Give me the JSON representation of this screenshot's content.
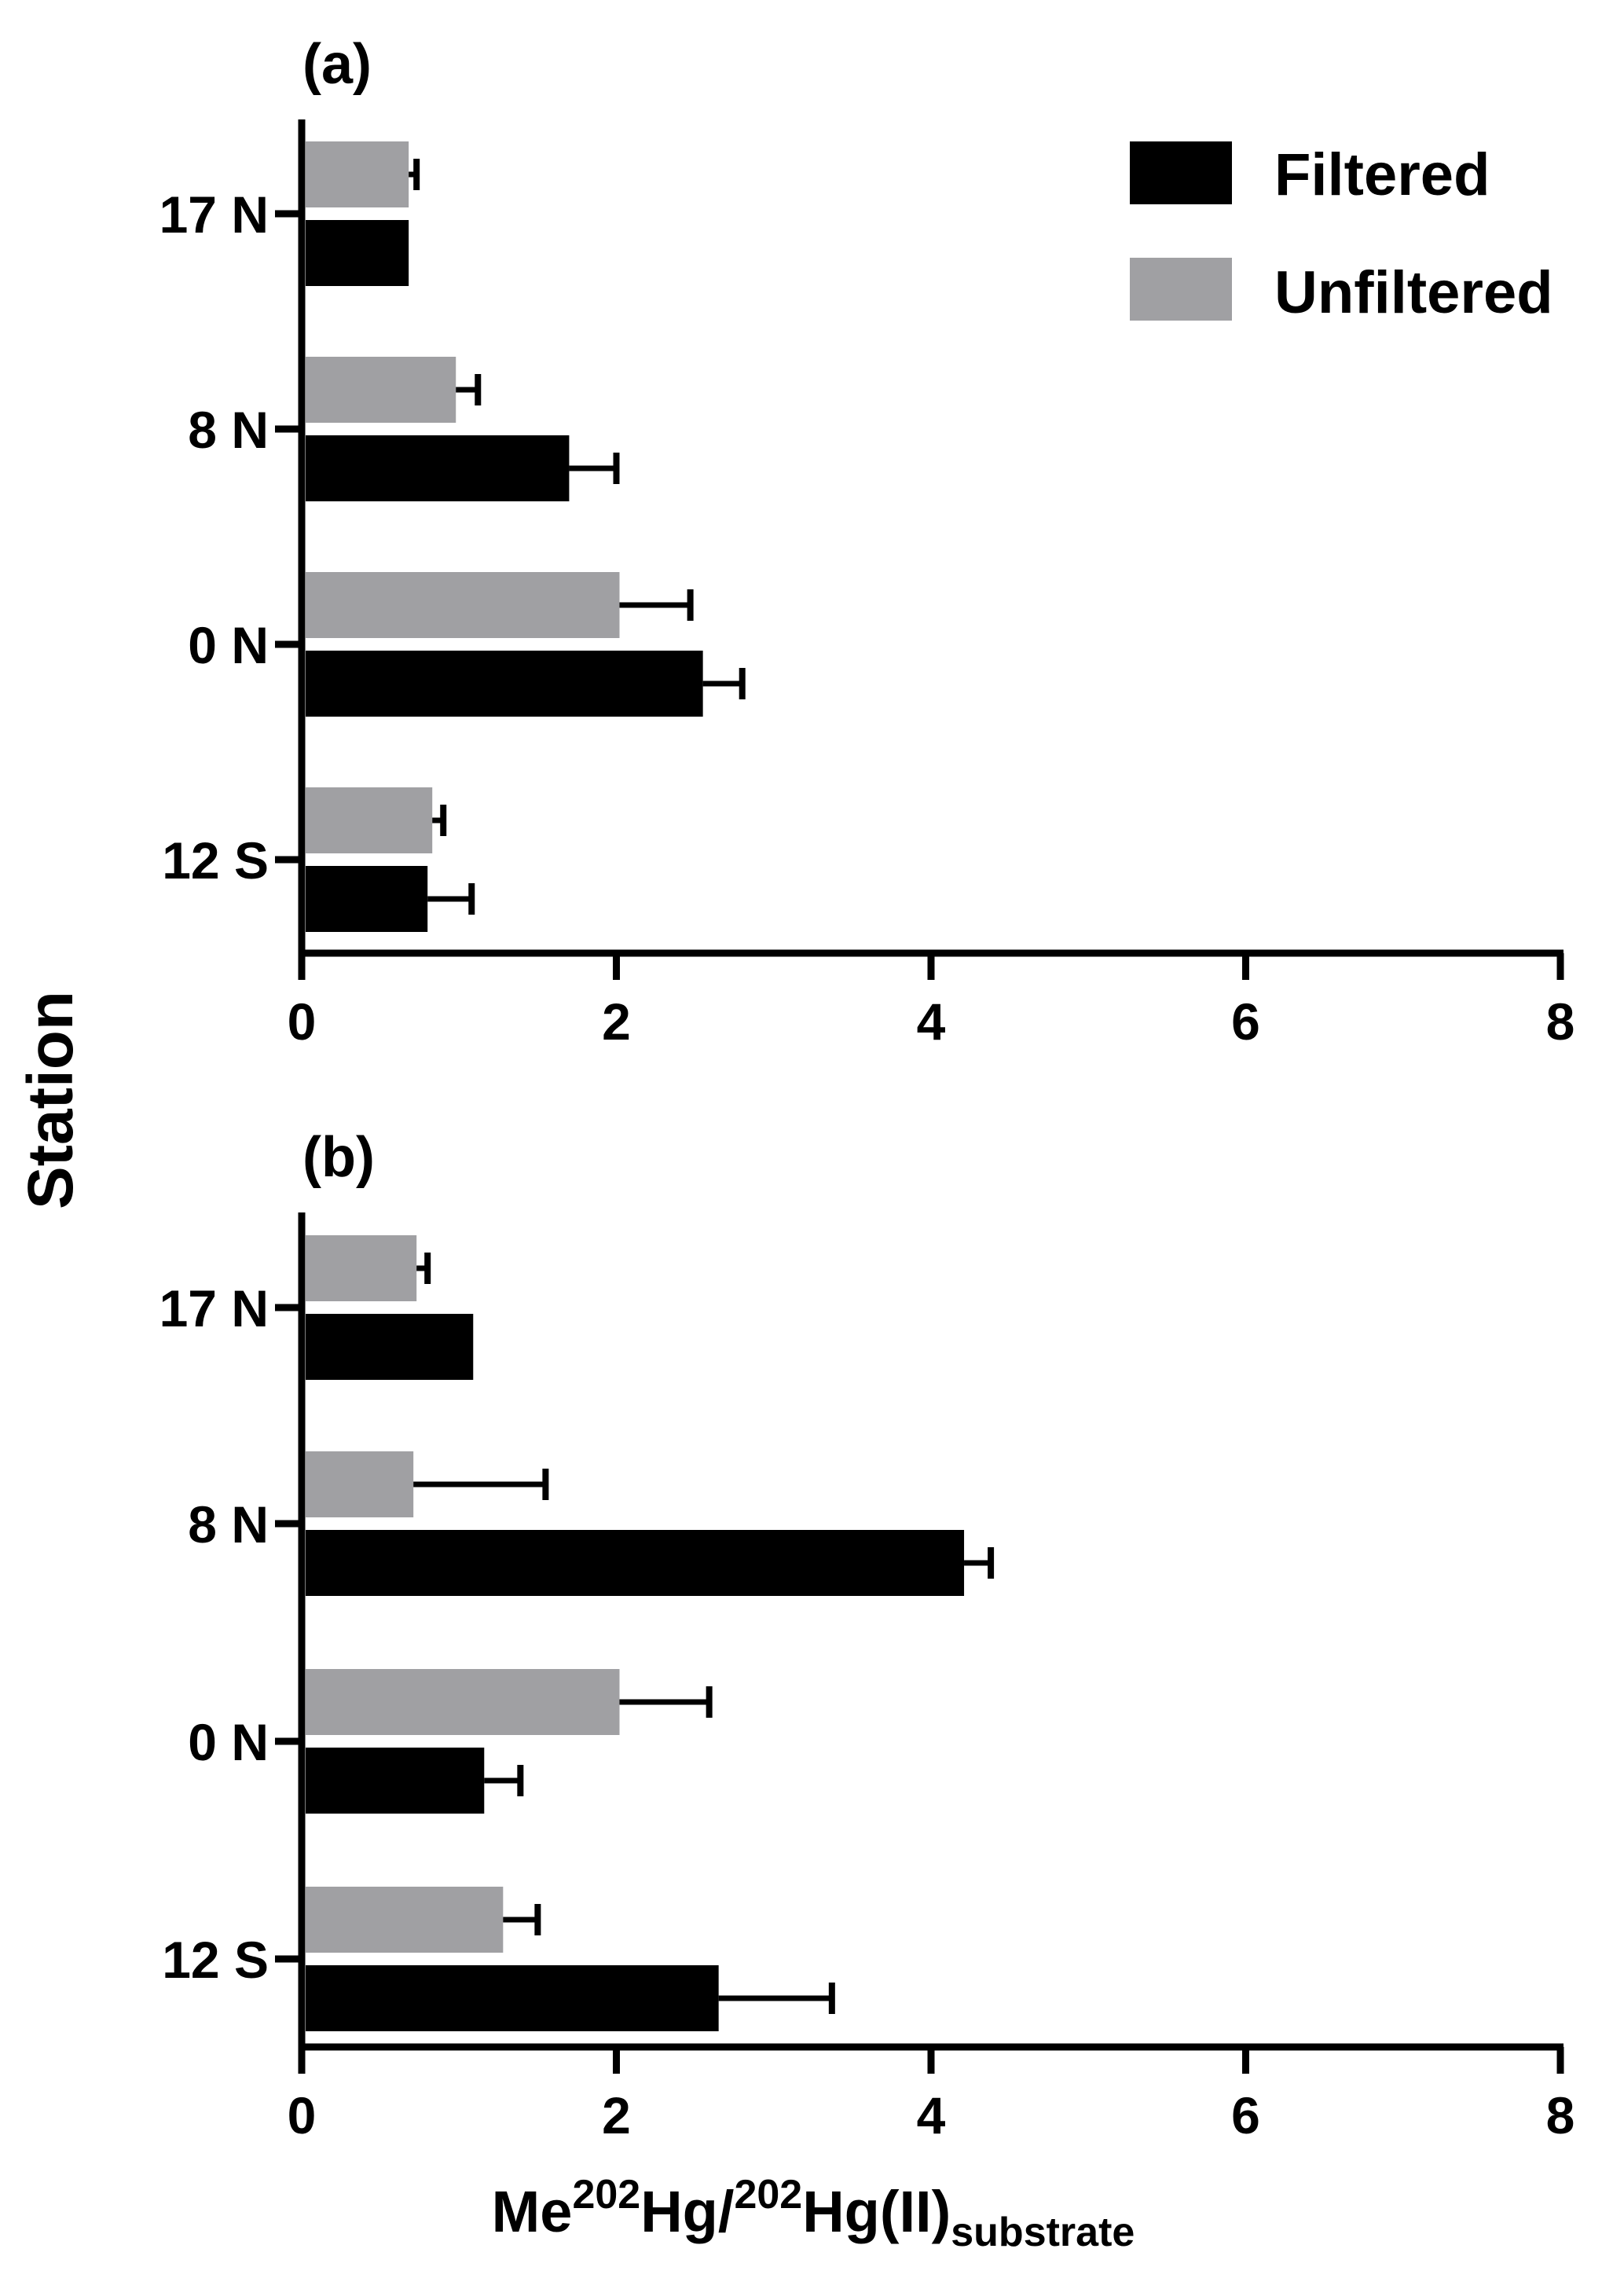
{
  "y_axis_label": "Station",
  "x_axis_title": {
    "part1": "Me",
    "sup1": "202",
    "part2": "Hg/",
    "sup2": "202",
    "part3": "Hg(II)",
    "sub": "substrate"
  },
  "legend": [
    {
      "label": "Filtered",
      "color": "#000000"
    },
    {
      "label": "Unfiltered",
      "color": "#a0a0a3"
    }
  ],
  "chart_data": [
    {
      "panel_label": "(a)",
      "type": "bar",
      "orientation": "horizontal",
      "categories": [
        "17 N",
        "8 N",
        "0 N",
        "12 S"
      ],
      "xlim": [
        0,
        8
      ],
      "xticks": [
        "0",
        "2",
        "4",
        "6",
        "8"
      ],
      "series": [
        {
          "name": "Unfiltered",
          "values": [
            0.68,
            0.98,
            2.02,
            0.83
          ],
          "errors": [
            0.05,
            0.14,
            0.45,
            0.07
          ]
        },
        {
          "name": "Filtered",
          "values": [
            0.68,
            1.7,
            2.55,
            0.8
          ],
          "errors": [
            0.0,
            0.3,
            0.25,
            0.28
          ]
        }
      ]
    },
    {
      "panel_label": "(b)",
      "type": "bar",
      "orientation": "horizontal",
      "categories": [
        "17 N",
        "8 N",
        "0 N",
        "12 S"
      ],
      "xlim": [
        0,
        8
      ],
      "xticks": [
        "0",
        "2",
        "4",
        "6",
        "8"
      ],
      "series": [
        {
          "name": "Unfiltered",
          "values": [
            0.73,
            0.71,
            2.02,
            1.28
          ],
          "errors": [
            0.07,
            0.84,
            0.57,
            0.22
          ]
        },
        {
          "name": "Filtered",
          "values": [
            1.09,
            4.21,
            1.16,
            2.65
          ],
          "errors": [
            0.0,
            0.17,
            0.23,
            0.72
          ]
        }
      ]
    }
  ]
}
